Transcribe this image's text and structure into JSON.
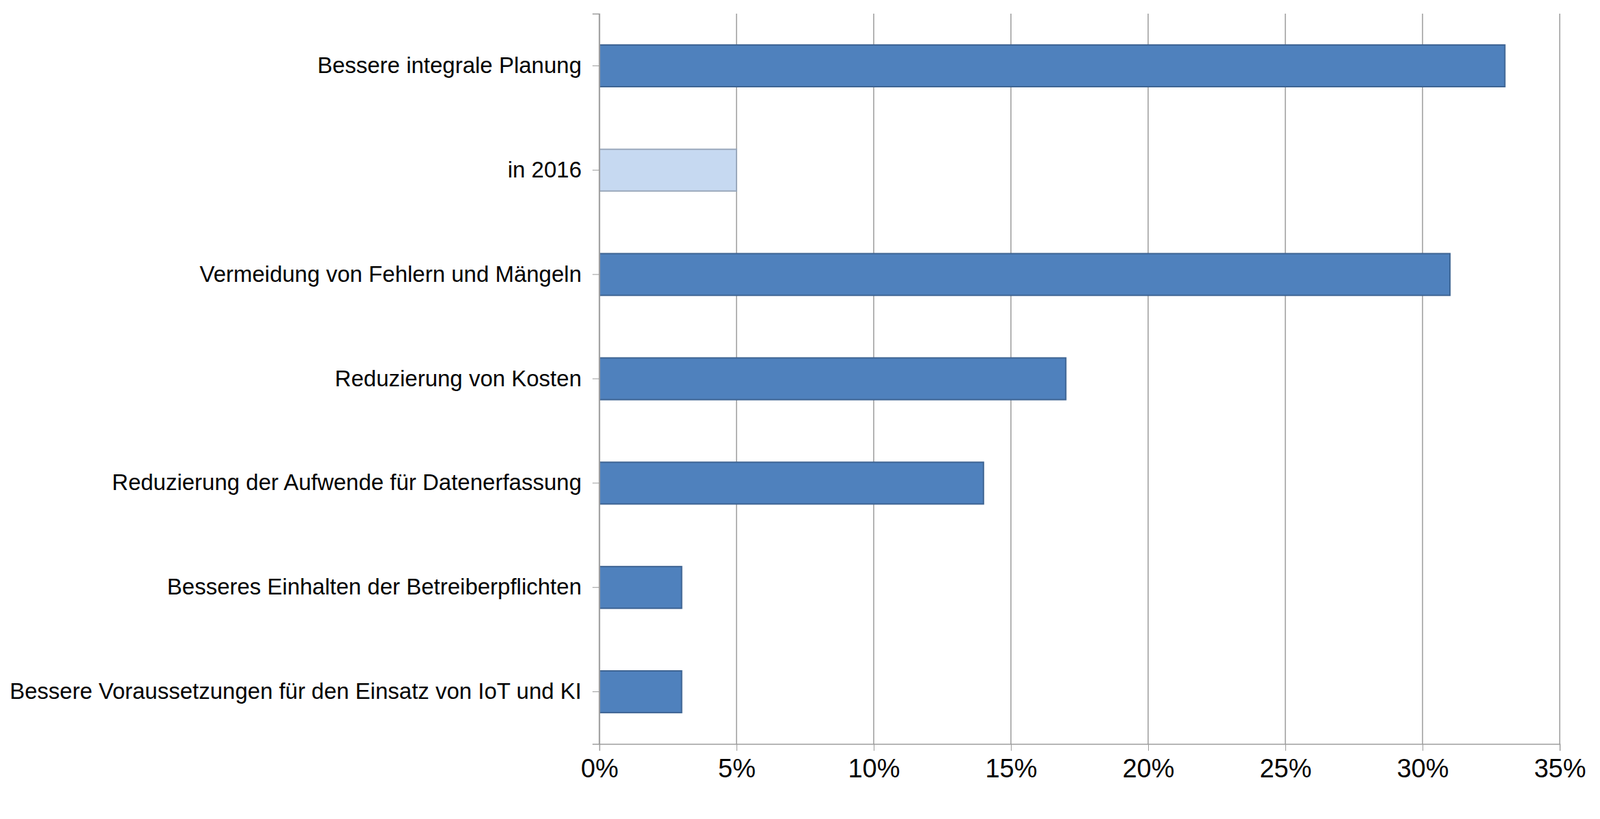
{
  "chart_data": {
    "type": "bar",
    "orientation": "horizontal",
    "categories": [
      "Bessere integrale Planung",
      "in 2016",
      "Vermeidung von Fehlern und Mängeln",
      "Reduzierung von Kosten",
      "Reduzierung der Aufwende für Datenerfassung",
      "Besseres Einhalten der Betreiberpflichten",
      "Bessere Voraussetzungen für den Einsatz von IoT und KI"
    ],
    "values": [
      33,
      5,
      31,
      17,
      14,
      3,
      3
    ],
    "colors": [
      "#4f81bd",
      "#c6d9f1",
      "#4f81bd",
      "#4f81bd",
      "#4f81bd",
      "#4f81bd",
      "#4f81bd"
    ],
    "xlim": [
      0,
      35
    ],
    "xticks": [
      {
        "value": 0,
        "label": "0%"
      },
      {
        "value": 5,
        "label": "5%"
      },
      {
        "value": 10,
        "label": "10%"
      },
      {
        "value": 15,
        "label": "15%"
      },
      {
        "value": 20,
        "label": "20%"
      },
      {
        "value": 25,
        "label": "25%"
      },
      {
        "value": 30,
        "label": "30%"
      },
      {
        "value": 35,
        "label": "35%"
      }
    ],
    "grid": true
  }
}
